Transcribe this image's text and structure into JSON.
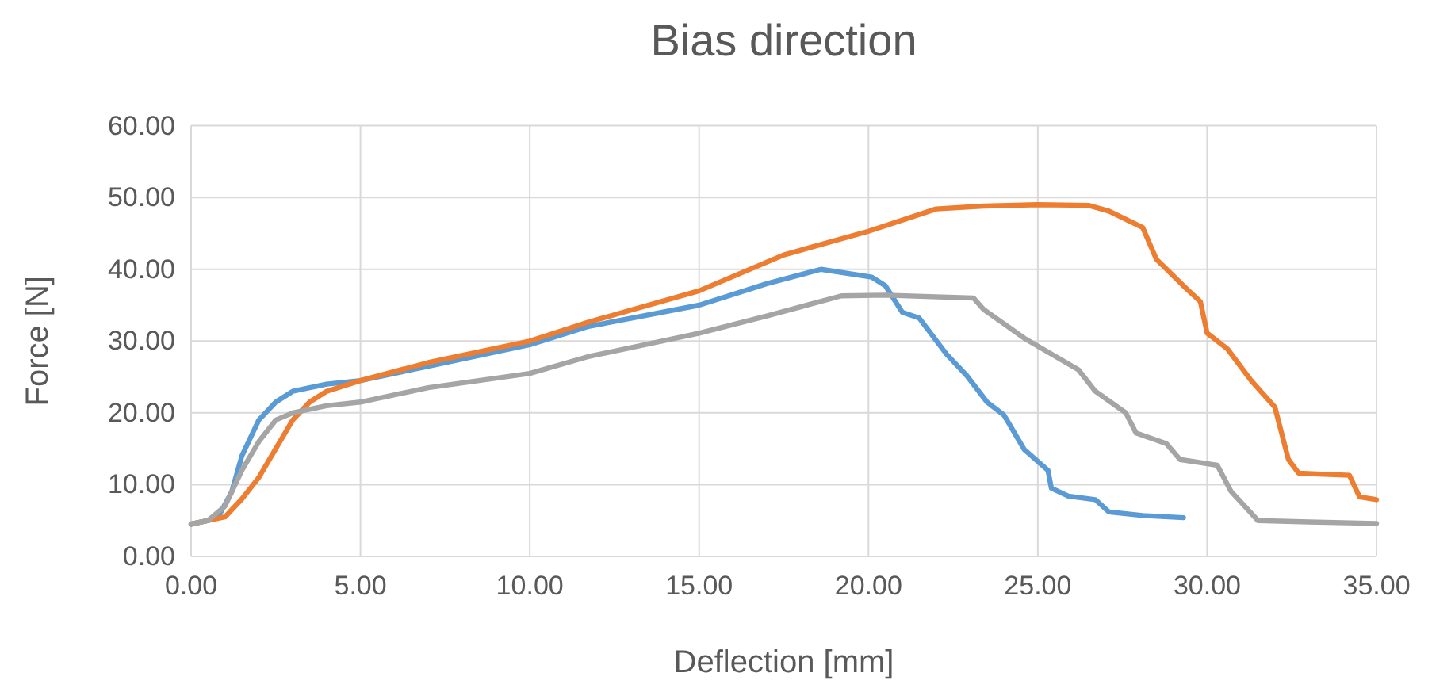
{
  "chart_data": {
    "type": "line",
    "title": "Bias direction",
    "xlabel": "Deflection [mm]",
    "ylabel": "Force [N]",
    "xlim": [
      0,
      35
    ],
    "ylim": [
      0,
      60
    ],
    "xticks": [
      {
        "value": 0,
        "label": "0.00"
      },
      {
        "value": 5,
        "label": "5.00"
      },
      {
        "value": 10,
        "label": "10.00"
      },
      {
        "value": 15,
        "label": "15.00"
      },
      {
        "value": 20,
        "label": "20.00"
      },
      {
        "value": 25,
        "label": "25.00"
      },
      {
        "value": 30,
        "label": "30.00"
      },
      {
        "value": 35,
        "label": "35.00"
      }
    ],
    "yticks": [
      {
        "value": 0,
        "label": "0.00"
      },
      {
        "value": 10,
        "label": "10.00"
      },
      {
        "value": 20,
        "label": "20.00"
      },
      {
        "value": 30,
        "label": "30.00"
      },
      {
        "value": 40,
        "label": "40.00"
      },
      {
        "value": 50,
        "label": "50.00"
      },
      {
        "value": 60,
        "label": "60.00"
      }
    ],
    "grid": true,
    "marker": "none",
    "line_style": "solid",
    "series": [
      {
        "color": "#5b9bd5",
        "x": [
          0,
          0.5,
          0.8,
          1.2,
          1.5,
          2,
          2.5,
          3,
          4,
          5,
          7,
          10,
          11.7,
          15,
          17,
          18.6,
          20.1,
          20.5,
          21,
          21.5,
          22.3,
          22.9,
          23.5,
          24,
          24.6,
          25.3,
          25.4,
          25.9,
          26.7,
          27.1,
          28.1,
          29.3
        ],
        "values": [
          4.5,
          5,
          5.5,
          9,
          14,
          19,
          21.5,
          23,
          24,
          24.5,
          26.5,
          29.5,
          32,
          35,
          38,
          40,
          38.9,
          37.7,
          34,
          33.2,
          28.2,
          25.2,
          21.5,
          19.7,
          14.9,
          12,
          9.5,
          8.4,
          7.9,
          6.2,
          5.7,
          5.4
        ]
      },
      {
        "color": "#ed7d31",
        "x": [
          0,
          0.5,
          1,
          1.5,
          2,
          2.5,
          3,
          3.5,
          4,
          5,
          7,
          10,
          11.7,
          15,
          17.5,
          20,
          22,
          23.4,
          25,
          26.5,
          27.1,
          28.1,
          28.5,
          29.3,
          29.8,
          30,
          30.6,
          31.3,
          32,
          32.4,
          32.7,
          34.2,
          34.5,
          35
        ],
        "values": [
          4.5,
          5,
          5.5,
          8,
          11,
          15,
          19,
          21.5,
          23,
          24.5,
          27,
          30,
          32.6,
          37,
          42,
          45.3,
          48.4,
          48.8,
          49,
          48.9,
          48.1,
          45.8,
          41.4,
          37.7,
          35.5,
          31.1,
          28.9,
          24.5,
          20.8,
          13.5,
          11.6,
          11.3,
          8.3,
          7.9
        ]
      },
      {
        "color": "#a5a5a5",
        "x": [
          0,
          0.5,
          1,
          1.5,
          2,
          2.5,
          3,
          4,
          5,
          7,
          10,
          11.7,
          15,
          17,
          19.2,
          20.5,
          23.1,
          23.4,
          24.6,
          26.2,
          26.7,
          27.6,
          27.9,
          28.8,
          29.2,
          30.3,
          30.7,
          31.5,
          33,
          35
        ],
        "values": [
          4.5,
          5,
          7,
          12,
          16,
          19,
          20,
          21,
          21.5,
          23.5,
          25.5,
          27.8,
          31.1,
          33.5,
          36.3,
          36.4,
          36,
          34.4,
          30.4,
          26,
          23,
          20,
          17.2,
          15.7,
          13.5,
          12.7,
          9.1,
          5,
          4.8,
          4.6
        ]
      }
    ]
  }
}
